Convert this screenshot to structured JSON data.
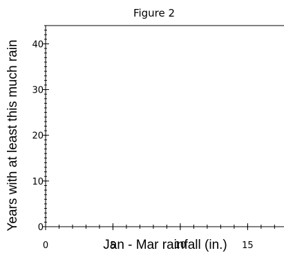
{
  "chart_data": {
    "type": "line",
    "title": "Figure 2",
    "xlabel": "Jan - Mar rainfall (in.)",
    "ylabel": "Years with at least this much rain",
    "xlim": [
      0,
      17.7
    ],
    "ylim": [
      0,
      44
    ],
    "x_ticks": [
      0,
      5,
      10,
      15
    ],
    "y_ticks": [
      0,
      10,
      20,
      30,
      40
    ],
    "x_minor_step": 1,
    "y_minor_step": 1,
    "grid": false,
    "series": []
  }
}
